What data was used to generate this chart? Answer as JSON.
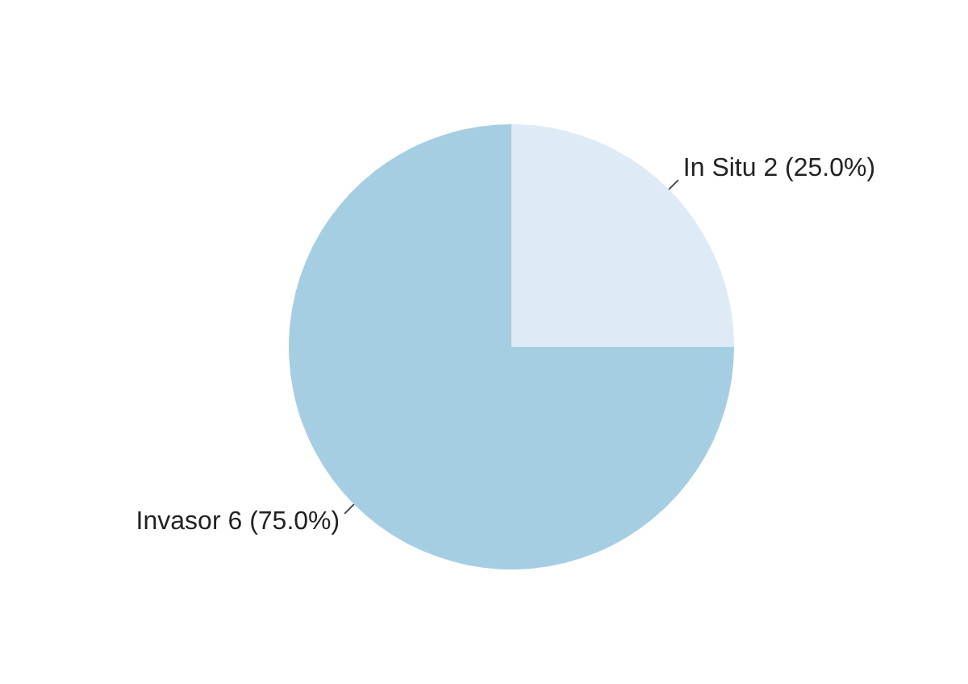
{
  "chart_data": {
    "type": "pie",
    "categories": [
      "In Situ",
      "Invasor"
    ],
    "values": [
      2,
      6
    ],
    "colors": [
      "#deebf7",
      "#a6cee3"
    ],
    "value_labels": [
      "2 (25.0%)",
      "6 (75.0%)"
    ],
    "legend": false
  }
}
